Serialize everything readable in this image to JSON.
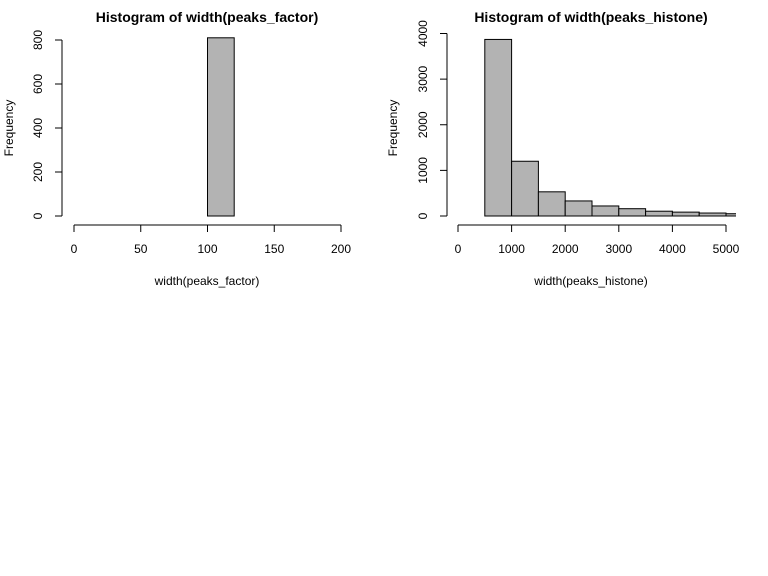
{
  "chart_data": [
    {
      "type": "bar",
      "title": "Histogram of width(peaks_factor)",
      "xlabel": "width(peaks_factor)",
      "ylabel": "Frequency",
      "xlim": [
        0,
        200
      ],
      "ylim": [
        0,
        800
      ],
      "xticks": [
        0,
        50,
        100,
        150,
        200
      ],
      "yticks": [
        0,
        200,
        400,
        600,
        800
      ],
      "bins": [
        {
          "x0": 100,
          "x1": 120,
          "count": 810
        }
      ],
      "bar_color": "#b3b3b3"
    },
    {
      "type": "bar",
      "title": "Histogram of width(peaks_histone)",
      "xlabel": "width(peaks_histone)",
      "ylabel": "Frequency",
      "xlim": [
        0,
        5000
      ],
      "ylim": [
        0,
        4000
      ],
      "xticks": [
        0,
        1000,
        2000,
        3000,
        4000,
        5000
      ],
      "yticks": [
        0,
        1000,
        2000,
        3000,
        4000
      ],
      "bins": [
        {
          "x0": 500,
          "x1": 1000,
          "count": 3870
        },
        {
          "x0": 1000,
          "x1": 1500,
          "count": 1200
        },
        {
          "x0": 1500,
          "x1": 2000,
          "count": 530
        },
        {
          "x0": 2000,
          "x1": 2500,
          "count": 330
        },
        {
          "x0": 2500,
          "x1": 3000,
          "count": 220
        },
        {
          "x0": 3000,
          "x1": 3500,
          "count": 160
        },
        {
          "x0": 3500,
          "x1": 4000,
          "count": 105
        },
        {
          "x0": 4000,
          "x1": 4500,
          "count": 85
        },
        {
          "x0": 4500,
          "x1": 5000,
          "count": 65
        },
        {
          "x0": 5000,
          "x1": 5500,
          "count": 50
        }
      ],
      "bar_color": "#b3b3b3"
    }
  ]
}
